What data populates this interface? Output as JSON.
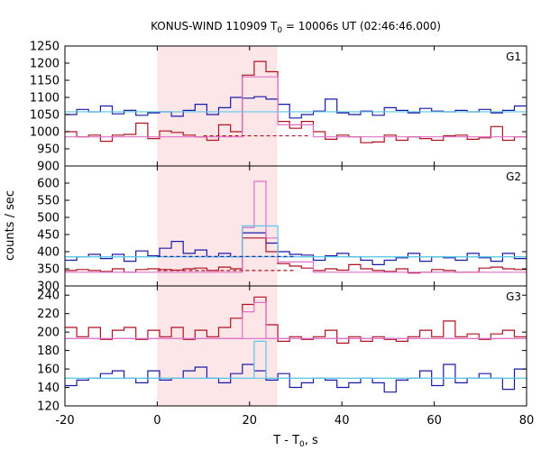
{
  "chart_data": {
    "type": "line",
    "title": {
      "prefix": "KONUS-WIND 110909 T",
      "sub": "0",
      "suffix": " = 10006s UT (02:46:46.000)"
    },
    "xlabel": {
      "prefix": "T - T",
      "sub": "0",
      "suffix": ", s"
    },
    "ylabel": "counts / sec",
    "xlim": [
      -20,
      80
    ],
    "xticks": [
      -20,
      0,
      20,
      40,
      60,
      80
    ],
    "interval_highlight": {
      "x0": 0,
      "x1": 26,
      "color": "#fde6e8"
    },
    "bin_edges": [
      -20,
      -17.44,
      -14.88,
      -12.31,
      -9.75,
      -7.19,
      -4.63,
      -2.06,
      0.5,
      3.06,
      5.62,
      8.18,
      10.75,
      13.31,
      15.87,
      18.43,
      21.0,
      23.56,
      26.12,
      28.68,
      31.24,
      33.81,
      36.37,
      38.93,
      41.49,
      44.06,
      46.62,
      49.18,
      51.74,
      54.3,
      56.87,
      59.43,
      61.99,
      64.55,
      67.12,
      69.68,
      72.24,
      74.8,
      77.37,
      80
    ],
    "panels": [
      {
        "label": "G1",
        "ylim": [
          900,
          1250
        ],
        "yticks": [
          900,
          950,
          1000,
          1050,
          1100,
          1150,
          1200,
          1250
        ],
        "series": [
          {
            "color": "#1a1aa8",
            "values": [
              1050,
              1065,
              1058,
              1075,
              1052,
              1062,
              1048,
              1055,
              1058,
              1045,
              1062,
              1080,
              1050,
              1070,
              1100,
              1098,
              1102,
              1095,
              1080,
              1040,
              1050,
              1060,
              1095,
              1055,
              1050,
              1060,
              1048,
              1070,
              1062,
              1055,
              1068,
              1060,
              1058,
              1062,
              1058,
              1065,
              1055,
              1062,
              1075
            ]
          },
          {
            "color": "#b01020",
            "values": [
              1000,
              985,
              990,
              972,
              990,
              992,
              1025,
              980,
              1002,
              998,
              990,
              985,
              975,
              1020,
              1000,
              1165,
              1205,
              1175,
              1030,
              1010,
              1030,
              1000,
              978,
              990,
              985,
              968,
              970,
              990,
              975,
              985,
              980,
              975,
              988,
              990,
              978,
              982,
              1015,
              975,
              985
            ]
          },
          {
            "color": "#e070c8",
            "values": [
              985,
              985,
              985,
              985,
              985,
              985,
              985,
              985,
              985,
              985,
              985,
              985,
              985,
              985,
              985,
              1160,
              1160,
              1160,
              1020,
              1020,
              1020,
              985,
              985,
              985,
              985,
              985,
              985,
              985,
              985,
              985,
              985,
              985,
              985,
              985,
              985,
              985,
              985,
              985,
              985
            ]
          }
        ],
        "fits": [
          {
            "color": "#5bc8e8",
            "style": "solid",
            "y": 1058,
            "x0": -20,
            "x1": 80
          },
          {
            "color": "#b01020",
            "style": "dashed",
            "y": 988,
            "x0": 10,
            "x1": 33
          }
        ]
      },
      {
        "label": "G2",
        "ylim": [
          300,
          650
        ],
        "yticks": [
          300,
          350,
          400,
          450,
          500,
          550,
          600
        ],
        "series": [
          {
            "color": "#1a1aa8",
            "values": [
              375,
              385,
              392,
              380,
              392,
              372,
              402,
              388,
              410,
              430,
              395,
              405,
              385,
              395,
              385,
              455,
              455,
              425,
              400,
              392,
              390,
              375,
              388,
              395,
              385,
              375,
              362,
              375,
              382,
              395,
              372,
              385,
              382,
              375,
              395,
              382,
              372,
              395,
              380
            ]
          },
          {
            "color": "#b01020",
            "values": [
              345,
              348,
              345,
              342,
              350,
              340,
              348,
              350,
              348,
              346,
              350,
              352,
              345,
              355,
              350,
              440,
              440,
              400,
              365,
              358,
              352,
              345,
              350,
              346,
              362,
              350,
              345,
              342,
              350,
              338,
              340,
              348,
              345,
              340,
              340,
              352,
              355,
              350,
              348
            ]
          },
          {
            "color": "#e070c8",
            "values": [
              340,
              340,
              340,
              340,
              340,
              340,
              340,
              340,
              340,
              340,
              340,
              340,
              340,
              340,
              340,
              470,
              605,
              440,
              370,
              370,
              370,
              340,
              340,
              340,
              340,
              340,
              340,
              340,
              340,
              340,
              340,
              340,
              340,
              340,
              340,
              340,
              340,
              340,
              340
            ]
          },
          {
            "color": "#5bc8e8",
            "values": [
              385,
              385,
              385,
              385,
              385,
              385,
              385,
              385,
              385,
              385,
              385,
              385,
              385,
              385,
              385,
              475,
              475,
              475,
              385,
              385,
              385,
              385,
              385,
              385,
              385,
              385,
              385,
              385,
              385,
              385,
              385,
              385,
              385,
              385,
              385,
              385,
              385,
              385,
              385
            ]
          }
        ],
        "fits": [
          {
            "color": "#5bc8e8",
            "style": "solid",
            "y": 385,
            "x0": -20,
            "x1": 80
          },
          {
            "color": "#1a1aa8",
            "style": "dashed",
            "y": 386,
            "x0": 0,
            "x1": 30
          },
          {
            "color": "#b01020",
            "style": "dashed",
            "y": 345,
            "x0": 0,
            "x1": 30
          }
        ]
      },
      {
        "label": "G3",
        "ylim": [
          120,
          250
        ],
        "yticks": [
          120,
          140,
          160,
          180,
          200,
          220,
          240
        ],
        "series": [
          {
            "color": "#1a1aa8",
            "values": [
              142,
              148,
              150,
              155,
              158,
              150,
              145,
              158,
              148,
              150,
              158,
              162,
              150,
              145,
              155,
              165,
              158,
              148,
              155,
              140,
              145,
              150,
              148,
              140,
              145,
              150,
              145,
              135,
              148,
              150,
              158,
              142,
              165,
              145,
              150,
              155,
              150,
              138,
              160
            ]
          },
          {
            "color": "#b01020",
            "values": [
              205,
              195,
              205,
              192,
              202,
              205,
              192,
              202,
              195,
              205,
              192,
              202,
              195,
              205,
              215,
              230,
              238,
              208,
              190,
              195,
              192,
              195,
              202,
              188,
              195,
              190,
              195,
              192,
              190,
              195,
              202,
              195,
              212,
              195,
              198,
              192,
              198,
              202,
              195
            ]
          },
          {
            "color": "#e070c8",
            "values": [
              193,
              193,
              193,
              193,
              193,
              193,
              193,
              193,
              193,
              193,
              193,
              193,
              193,
              193,
              193,
              222,
              232,
              193,
              193,
              193,
              193,
              193,
              193,
              193,
              193,
              193,
              193,
              193,
              193,
              193,
              193,
              193,
              193,
              193,
              193,
              193,
              193,
              193,
              193
            ]
          },
          {
            "color": "#5bc8e8",
            "values": [
              150,
              150,
              150,
              150,
              150,
              150,
              150,
              150,
              150,
              150,
              150,
              150,
              150,
              150,
              150,
              150,
              190,
              150,
              150,
              150,
              150,
              150,
              150,
              150,
              150,
              150,
              150,
              150,
              150,
              150,
              150,
              150,
              150,
              150,
              150,
              150,
              150,
              150,
              150
            ]
          }
        ],
        "fits": [
          {
            "color": "#5bc8e8",
            "style": "solid",
            "y": 150,
            "x0": -20,
            "x1": 80
          },
          {
            "color": "#e070c8",
            "style": "solid",
            "y": 193,
            "x0": -20,
            "x1": 80
          }
        ]
      }
    ]
  }
}
